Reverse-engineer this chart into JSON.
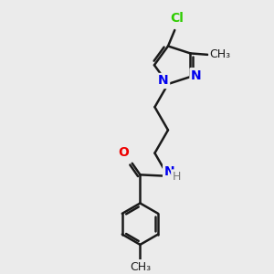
{
  "background_color": "#ebebeb",
  "bond_color": "#1a1a1a",
  "bond_width": 1.8,
  "atoms": {
    "Cl": {
      "color": "#2ecc00",
      "fontsize": 10
    },
    "N": {
      "color": "#0000ee",
      "fontsize": 10
    },
    "O": {
      "color": "#ee0000",
      "fontsize": 10
    },
    "H": {
      "color": "#777777",
      "fontsize": 9
    },
    "CH3": {
      "color": "#1a1a1a",
      "fontsize": 9
    }
  },
  "figsize": [
    3.0,
    3.0
  ],
  "dpi": 100,
  "xlim": [
    0,
    10
  ],
  "ylim": [
    0,
    10
  ]
}
